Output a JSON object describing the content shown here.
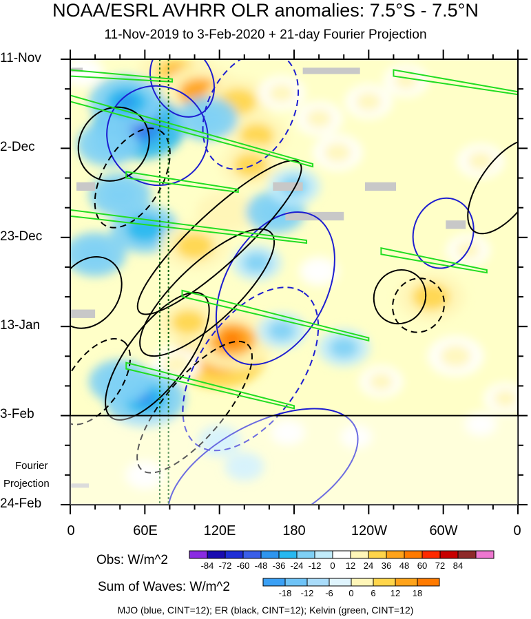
{
  "chart_data": {
    "type": "heatmap",
    "title": "NOAA/ESRL AVHRR OLR anomalies: 7.5°S - 7.5°N",
    "subtitle": "11-Nov-2019 to 3-Feb-2020 + 21-day Fourier Projection",
    "x_axis": {
      "tick_labels": [
        "0",
        "60E",
        "120E",
        "180",
        "120W",
        "60W",
        "0"
      ],
      "range_deg_east": [
        0,
        360
      ]
    },
    "y_axis": {
      "tick_labels": [
        "11-Nov",
        "2-Dec",
        "23-Dec",
        "13-Jan",
        "3-Feb",
        "24-Feb"
      ],
      "range_days_since_11Nov2019": [
        0,
        105
      ],
      "observation_end_day": 84
    },
    "projection_label": [
      "Fourier",
      "Projection"
    ],
    "obs_colorbar": {
      "label": "Obs: W/m^2",
      "levels": [
        "-84",
        "-72",
        "-60",
        "-48",
        "-36",
        "-24",
        "-12",
        "0",
        "12",
        "24",
        "36",
        "48",
        "60",
        "72",
        "84"
      ],
      "colors": [
        "#8a2be2",
        "#1a0cb0",
        "#1f2fd6",
        "#3a5fe8",
        "#2e95ee",
        "#27b8f0",
        "#7fd0f5",
        "#c2ecfb",
        "#ffffff",
        "#fff6b8",
        "#ffd54a",
        "#ffa31a",
        "#ff7a00",
        "#ff2a00",
        "#c80000",
        "#8e2a2a",
        "#ee77d0"
      ]
    },
    "waves_colorbar": {
      "label": "Sum of Waves: W/m^2",
      "levels": [
        "-18",
        "-12",
        "-6",
        "0",
        "6",
        "12",
        "18"
      ],
      "colors": [
        "#3aa0f5",
        "#6ec3f7",
        "#a9dcfa",
        "#dff4fd",
        "#fff6b8",
        "#ffd54a",
        "#ffa31a",
        "#ff7a00"
      ]
    },
    "contour_legend": "MJO (blue, CINT=12); ER (black, CINT=12); Kelvin (green, CINT=12)",
    "field_blobs": [
      {
        "lon": 85,
        "day": 3,
        "val": 40
      },
      {
        "lon": 105,
        "day": 8,
        "val": 45
      },
      {
        "lon": 135,
        "day": 10,
        "val": 35
      },
      {
        "lon": 150,
        "day": 18,
        "val": 30
      },
      {
        "lon": 145,
        "day": 25,
        "val": 30
      },
      {
        "lon": 170,
        "day": 8,
        "val": 18
      },
      {
        "lon": 55,
        "day": 16,
        "val": -55
      },
      {
        "lon": 45,
        "day": 10,
        "val": -40
      },
      {
        "lon": 30,
        "day": 20,
        "val": -30
      },
      {
        "lon": 110,
        "day": 14,
        "val": -30
      },
      {
        "lon": 200,
        "day": 14,
        "val": 18
      },
      {
        "lon": 215,
        "day": 22,
        "val": 20
      },
      {
        "lon": 240,
        "day": 10,
        "val": 18
      },
      {
        "lon": 270,
        "day": 5,
        "val": 16
      },
      {
        "lon": 330,
        "day": 24,
        "val": 18
      },
      {
        "lon": 10,
        "day": 3,
        "val": 14
      },
      {
        "lon": 60,
        "day": 40,
        "val": -35
      },
      {
        "lon": 40,
        "day": 32,
        "val": -30
      },
      {
        "lon": 100,
        "day": 44,
        "val": 35
      },
      {
        "lon": 125,
        "day": 36,
        "val": 28
      },
      {
        "lon": 165,
        "day": 36,
        "val": -28
      },
      {
        "lon": 180,
        "day": 30,
        "val": -22
      },
      {
        "lon": 150,
        "day": 48,
        "val": -20
      },
      {
        "lon": 20,
        "day": 46,
        "val": -30
      },
      {
        "lon": 120,
        "day": 70,
        "val": 55
      },
      {
        "lon": 130,
        "day": 66,
        "val": 50
      },
      {
        "lon": 95,
        "day": 62,
        "val": 30
      },
      {
        "lon": 85,
        "day": 72,
        "val": 20
      },
      {
        "lon": 60,
        "day": 80,
        "val": -45
      },
      {
        "lon": 40,
        "day": 76,
        "val": -30
      },
      {
        "lon": 170,
        "day": 64,
        "val": -20
      },
      {
        "lon": 220,
        "day": 68,
        "val": -22
      },
      {
        "lon": 290,
        "day": 56,
        "val": 35
      },
      {
        "lon": 310,
        "day": 70,
        "val": 25
      },
      {
        "lon": 250,
        "day": 76,
        "val": 15
      },
      {
        "lon": 200,
        "day": 50,
        "val": 12
      },
      {
        "lon": 320,
        "day": 45,
        "val": 15
      },
      {
        "lon": 350,
        "day": 80,
        "val": 15
      },
      {
        "lon": 120,
        "day": 90,
        "val": -15
      },
      {
        "lon": 140,
        "day": 96,
        "val": -12
      },
      {
        "lon": 60,
        "day": 98,
        "val": 12
      },
      {
        "lon": 175,
        "day": 88,
        "val": 8
      },
      {
        "lon": 230,
        "day": 89,
        "val": 6
      },
      {
        "lon": 330,
        "day": 86,
        "val": 6
      }
    ],
    "missing_data": [
      {
        "lon": [
          0,
          10
        ],
        "day": [
          2,
          3
        ]
      },
      {
        "lon": [
          5,
          20
        ],
        "day": [
          29,
          31
        ]
      },
      {
        "lon": [
          0,
          20
        ],
        "day": [
          59,
          61
        ]
      },
      {
        "lon": [
          0,
          15
        ],
        "day": [
          100,
          101
        ]
      },
      {
        "lon": [
          187,
          233
        ],
        "day": [
          2,
          3.5
        ]
      },
      {
        "lon": [
          163,
          187
        ],
        "day": [
          29,
          31
        ]
      },
      {
        "lon": [
          173,
          220
        ],
        "day": [
          36,
          38
        ]
      },
      {
        "lon": [
          237,
          262
        ],
        "day": [
          29,
          31
        ]
      },
      {
        "lon": [
          302,
          318
        ],
        "day": [
          38,
          40
        ]
      }
    ],
    "wave_contours": {
      "mjo_blue": [
        {
          "lon": 90,
          "day": 5,
          "rx": 11,
          "ry": 4.5,
          "rot": -28,
          "dashed": false
        },
        {
          "lon": 145,
          "day": 12,
          "rx": 23,
          "ry": 5,
          "rot": -62,
          "dashed": true
        },
        {
          "lon": 70,
          "day": 18,
          "rx": 18,
          "ry": 6,
          "rot": -58,
          "dashed": false
        },
        {
          "lon": 165,
          "day": 54,
          "rx": 30,
          "ry": 6,
          "rot": -62,
          "dashed": false
        },
        {
          "lon": 145,
          "day": 73,
          "rx": 34,
          "ry": 6,
          "rot": -55,
          "dashed": true
        },
        {
          "lon": 155,
          "day": 98,
          "rx": 38,
          "ry": 6,
          "rot": -28,
          "dashed": false
        },
        {
          "lon": 300,
          "day": 41,
          "rx": 13,
          "ry": 3.5,
          "rot": -72,
          "dashed": false
        }
      ],
      "er_black": [
        {
          "lon": 50,
          "day": 28,
          "rx": 20,
          "ry": 3.5,
          "rot": -60,
          "dashed": true
        },
        {
          "lon": 35,
          "day": 20,
          "rx": 14,
          "ry": 4,
          "rot": -55,
          "dashed": false
        },
        {
          "lon": 120,
          "day": 42,
          "rx": 40,
          "ry": 3,
          "rot": -43,
          "dashed": false
        },
        {
          "lon": 110,
          "day": 55,
          "rx": 32,
          "ry": 3.5,
          "rot": -43,
          "dashed": false
        },
        {
          "lon": 70,
          "day": 70,
          "rx": 28,
          "ry": 3.5,
          "rot": -53,
          "dashed": false
        },
        {
          "lon": 100,
          "day": 82,
          "rx": 30,
          "ry": 3.5,
          "rot": -50,
          "dashed": true
        },
        {
          "lon": 20,
          "day": 76,
          "rx": 18,
          "ry": 3,
          "rot": -55,
          "dashed": true
        },
        {
          "lon": 15,
          "day": 55,
          "rx": 14,
          "ry": 3.5,
          "rot": -55,
          "dashed": false
        },
        {
          "lon": 350,
          "day": 30,
          "rx": 20,
          "ry": 3,
          "rot": -55,
          "dashed": false
        },
        {
          "lon": 265,
          "day": 56,
          "rx": 10,
          "ry": 3,
          "rot": -60,
          "dashed": false
        },
        {
          "lon": 280,
          "day": 58,
          "rx": 10,
          "ry": 3,
          "rot": -65,
          "dashed": true
        }
      ],
      "kelvin_green": [
        {
          "lon0": 0,
          "day0": 3,
          "lon1": 82,
          "day1": 5
        },
        {
          "lon0": 0,
          "day0": 9,
          "lon1": 195,
          "day1": 25
        },
        {
          "lon0": 0,
          "day0": 36,
          "lon1": 190,
          "day1": 43
        },
        {
          "lon0": 45,
          "day0": 27,
          "lon1": 135,
          "day1": 31
        },
        {
          "lon0": 90,
          "day0": 55,
          "lon1": 240,
          "day1": 66
        },
        {
          "lon0": 45,
          "day0": 72,
          "lon1": 180,
          "day1": 82
        },
        {
          "lon0": 260,
          "day0": 3,
          "lon1": 360,
          "day1": 8
        },
        {
          "lon0": 250,
          "day0": 45,
          "lon1": 335,
          "day1": 50
        }
      ],
      "green_dotted_lon": [
        72,
        79
      ]
    }
  }
}
